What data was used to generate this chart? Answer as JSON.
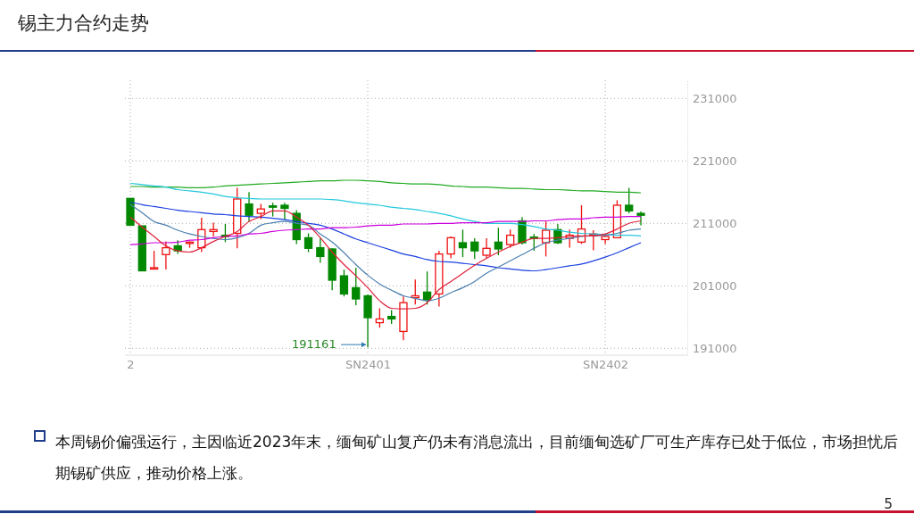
{
  "chart_data": {
    "type": "candlestick",
    "title": "锡主力合约走势",
    "categories": [
      "2",
      null,
      null,
      null,
      null,
      null,
      null,
      null,
      null,
      null,
      null,
      null,
      null,
      null,
      null,
      null,
      null,
      null,
      null,
      null,
      "SN2401",
      null,
      null,
      null,
      null,
      null,
      null,
      null,
      null,
      null,
      null,
      null,
      null,
      null,
      null,
      null,
      null,
      null,
      null,
      null,
      "SN2402",
      null,
      null,
      null
    ],
    "ohlc": [
      [
        215000,
        215000,
        210700,
        210700
      ],
      [
        210600,
        210600,
        203400,
        203400
      ],
      [
        203700,
        206600,
        203600,
        203900
      ],
      [
        206000,
        208100,
        203600,
        207100
      ],
      [
        207400,
        208300,
        206100,
        206600
      ],
      [
        207900,
        208100,
        207100,
        208000
      ],
      [
        207100,
        211900,
        206400,
        210000
      ],
      [
        209700,
        211100,
        208900,
        210000
      ],
      [
        209100,
        210900,
        208000,
        208900
      ],
      [
        209400,
        216700,
        207000,
        214900
      ],
      [
        214100,
        216000,
        211300,
        212300
      ],
      [
        212600,
        214100,
        211700,
        213300
      ],
      [
        213800,
        214300,
        212100,
        213700
      ],
      [
        213900,
        214300,
        211600,
        213400
      ],
      [
        212600,
        213100,
        207700,
        208400
      ],
      [
        208700,
        209400,
        206400,
        207000
      ],
      [
        207100,
        208600,
        204700,
        205700
      ],
      [
        206900,
        207000,
        200300,
        201900
      ],
      [
        202600,
        203600,
        199300,
        199700
      ],
      [
        200700,
        203900,
        197900,
        198900
      ],
      [
        199400,
        199600,
        191161,
        195900
      ],
      [
        195100,
        197400,
        194300,
        195700
      ],
      [
        196100,
        197100,
        194900,
        195700
      ],
      [
        193700,
        199300,
        192300,
        198300
      ],
      [
        199100,
        202000,
        198000,
        199400
      ],
      [
        200000,
        203300,
        198000,
        198700
      ],
      [
        199700,
        206600,
        197700,
        206100
      ],
      [
        206100,
        208900,
        205400,
        208700
      ],
      [
        207900,
        210000,
        205600,
        207100
      ],
      [
        208000,
        208600,
        205300,
        206600
      ],
      [
        205900,
        208600,
        205400,
        207000
      ],
      [
        208000,
        210300,
        205900,
        206900
      ],
      [
        207600,
        210000,
        207100,
        209100
      ],
      [
        211400,
        212000,
        207600,
        207900
      ],
      [
        208800,
        209300,
        206600,
        208700
      ],
      [
        207900,
        211300,
        205700,
        209900
      ],
      [
        210000,
        210900,
        207700,
        207900
      ],
      [
        208600,
        210000,
        207100,
        209100
      ],
      [
        208000,
        213900,
        207700,
        210100
      ],
      [
        209200,
        209900,
        206700,
        209300
      ],
      [
        208400,
        209100,
        207700,
        208900
      ],
      [
        208700,
        214700,
        208700,
        213900
      ],
      [
        213900,
        216700,
        212600,
        213000
      ],
      [
        212600,
        212900,
        210700,
        212300
      ]
    ],
    "series": [
      {
        "type": "line",
        "color": "#22aa22",
        "values": [
          216900,
          216900,
          216800,
          216800,
          216800,
          216700,
          216700,
          216800,
          217000,
          217100,
          217200,
          217300,
          217400,
          217500,
          217600,
          217700,
          217800,
          217800,
          217900,
          217900,
          217800,
          217700,
          217500,
          217400,
          217300,
          217300,
          217200,
          217000,
          216900,
          216800,
          216800,
          216700,
          216600,
          216600,
          216500,
          216400,
          216400,
          216300,
          216200,
          216200,
          216100,
          216000,
          216000,
          215900
        ]
      },
      {
        "type": "line",
        "color": "#22c8dd",
        "values": [
          217400,
          217200,
          217000,
          216800,
          216400,
          216200,
          216000,
          215700,
          215300,
          215100,
          215000,
          214900,
          214900,
          214900,
          214900,
          214900,
          214900,
          214800,
          214600,
          214300,
          214100,
          213900,
          213600,
          213400,
          213200,
          212900,
          212600,
          212200,
          211700,
          211300,
          211000,
          211000,
          211000,
          210800,
          210500,
          210100,
          209900,
          209600,
          209400,
          209300,
          209200,
          209100,
          209100,
          209000
        ]
      },
      {
        "type": "line",
        "color": "#1a3fe0",
        "values": [
          214400,
          214000,
          213700,
          213400,
          213100,
          212900,
          212700,
          212500,
          212400,
          212200,
          212100,
          212000,
          211800,
          211600,
          211300,
          211000,
          210700,
          210100,
          209300,
          208500,
          207900,
          207300,
          206700,
          206100,
          205700,
          205200,
          204900,
          204800,
          204600,
          204400,
          204200,
          203900,
          203700,
          203500,
          203400,
          203600,
          203900,
          204200,
          204500,
          205000,
          205600,
          206300,
          207100,
          207900
        ]
      },
      {
        "type": "line",
        "color": "#4a7fb0",
        "values": [
          214000,
          212700,
          211300,
          210700,
          209900,
          209300,
          208900,
          208600,
          208400,
          208700,
          209400,
          210700,
          211100,
          211300,
          211000,
          210700,
          209300,
          208000,
          206300,
          204400,
          202700,
          201300,
          200300,
          199400,
          199000,
          198600,
          199000,
          199900,
          200700,
          201700,
          203000,
          204000,
          205000,
          206000,
          207000,
          207900,
          208300,
          208600,
          208900,
          209000,
          209100,
          209400,
          209900,
          210100
        ]
      },
      {
        "type": "line",
        "color": "#cc00dd",
        "values": [
          207600,
          207700,
          207900,
          207900,
          208000,
          208300,
          208400,
          208700,
          208900,
          209000,
          209300,
          209400,
          209700,
          209900,
          210000,
          210100,
          210100,
          210300,
          210300,
          210400,
          210600,
          210700,
          210700,
          210900,
          210900,
          210900,
          211000,
          211000,
          211100,
          211100,
          211100,
          211300,
          211300,
          211300,
          211400,
          211400,
          211600,
          211700,
          211700,
          211900,
          212000,
          212000,
          212100,
          212100
        ]
      },
      {
        "type": "line",
        "color": "#e0203a",
        "values": [
          212000,
          210400,
          208900,
          207400,
          206600,
          206400,
          207100,
          208100,
          208900,
          209700,
          211300,
          212100,
          213000,
          213000,
          212000,
          210700,
          208700,
          206400,
          204400,
          202600,
          200700,
          198600,
          197400,
          197300,
          197400,
          198300,
          200400,
          201700,
          203000,
          204300,
          205400,
          206400,
          207300,
          208000,
          208600,
          208600,
          208700,
          208900,
          209000,
          209000,
          209300,
          210100,
          211000,
          211400
        ]
      }
    ],
    "ylim": [
      189900,
      233900
    ],
    "yticks": [
      191000,
      201000,
      211000,
      221000,
      231000
    ],
    "grid": true,
    "annotations": [
      "本周锡价偏强运行，主因临近2023年末，缅甸矿山复产仍未有消息流出，目前缅甸选矿厂可生产库存已处于低位，市场担忧后期锡矿供应，推动价格上涨。",
      "5",
      "191161"
    ]
  }
}
